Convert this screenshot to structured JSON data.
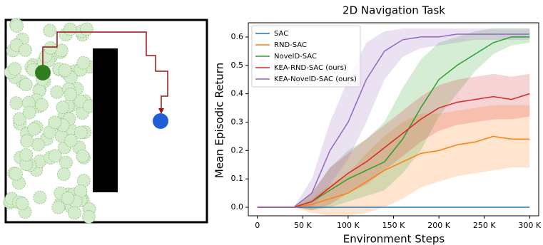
{
  "chart_data": {
    "type": "line",
    "title": "2D Navigation Task",
    "xlabel": "Environment Steps",
    "ylabel": "Mean Episodic Return",
    "x": [
      0,
      20000,
      40000,
      60000,
      80000,
      100000,
      120000,
      140000,
      160000,
      180000,
      200000,
      220000,
      240000,
      260000,
      280000,
      300000
    ],
    "xlim": [
      -10000,
      310000
    ],
    "xticks": [
      0,
      {
        "value": 50000,
        "label": "50 K"
      },
      {
        "value": 100000,
        "label": "100 K"
      },
      {
        "value": 150000,
        "label": "150 K"
      },
      {
        "value": 200000,
        "label": "200 K"
      },
      {
        "value": 250000,
        "label": "250 K"
      },
      {
        "value": 300000,
        "label": "300 K"
      }
    ],
    "ylim": [
      -0.03,
      0.65
    ],
    "yticks": [
      {
        "value": 0,
        "label": "0.0"
      },
      0.1,
      0.2,
      0.3,
      0.4,
      0.5,
      0.6
    ],
    "legend": "upper left",
    "series": [
      {
        "name": "SAC",
        "color": "#1f77b4",
        "values": [
          0,
          0,
          0,
          0,
          0,
          0,
          0,
          0,
          0,
          0,
          0,
          0,
          0,
          0,
          0,
          0
        ]
      },
      {
        "name": "RND-SAC",
        "color": "#ff7f0e",
        "values": [
          0,
          0,
          0,
          0.01,
          0.03,
          0.05,
          0.09,
          0.13,
          0.16,
          0.19,
          0.2,
          0.22,
          0.23,
          0.25,
          0.24,
          0.24
        ],
        "lower": [
          0,
          0,
          0,
          -0.02,
          -0.03,
          -0.03,
          -0.02,
          0.0,
          0.03,
          0.07,
          0.09,
          0.11,
          0.12,
          0.13,
          0.14,
          0.14
        ],
        "upper": [
          0,
          0,
          0,
          0.03,
          0.08,
          0.12,
          0.19,
          0.25,
          0.3,
          0.33,
          0.33,
          0.34,
          0.35,
          0.36,
          0.36,
          0.36
        ]
      },
      {
        "name": "NovelD-SAC",
        "color": "#2ca02c",
        "values": [
          0,
          0,
          0,
          0.02,
          0.06,
          0.1,
          0.13,
          0.16,
          0.24,
          0.35,
          0.45,
          0.5,
          0.54,
          0.58,
          0.6,
          0.6
        ],
        "lower": [
          0,
          0,
          0,
          -0.01,
          0.0,
          0.02,
          0.04,
          0.06,
          0.12,
          0.2,
          0.32,
          0.4,
          0.48,
          0.54,
          0.57,
          0.58
        ],
        "upper": [
          0,
          0,
          0,
          0.05,
          0.14,
          0.2,
          0.24,
          0.3,
          0.42,
          0.52,
          0.58,
          0.6,
          0.62,
          0.63,
          0.63,
          0.63
        ]
      },
      {
        "name": "KEA-RND-SAC (ours)",
        "color": "#d62728",
        "values": [
          0,
          0,
          0,
          0.02,
          0.07,
          0.12,
          0.16,
          0.21,
          0.26,
          0.31,
          0.35,
          0.37,
          0.38,
          0.39,
          0.38,
          0.4
        ],
        "lower": [
          0,
          0,
          0,
          -0.01,
          0.01,
          0.05,
          0.08,
          0.13,
          0.18,
          0.23,
          0.27,
          0.29,
          0.3,
          0.31,
          0.31,
          0.32
        ],
        "upper": [
          0,
          0,
          0,
          0.05,
          0.14,
          0.19,
          0.24,
          0.29,
          0.34,
          0.39,
          0.43,
          0.45,
          0.46,
          0.47,
          0.46,
          0.47
        ]
      },
      {
        "name": "KEA-NovelD-SAC (ours)",
        "color": "#9467bd",
        "values": [
          0,
          0,
          0,
          0.05,
          0.2,
          0.3,
          0.45,
          0.55,
          0.59,
          0.6,
          0.6,
          0.61,
          0.61,
          0.61,
          0.61,
          0.61
        ],
        "lower": [
          0,
          0,
          0,
          0.0,
          0.08,
          0.17,
          0.3,
          0.45,
          0.53,
          0.56,
          0.57,
          0.58,
          0.59,
          0.59,
          0.59,
          0.59
        ],
        "upper": [
          0,
          0,
          0,
          0.1,
          0.3,
          0.45,
          0.58,
          0.62,
          0.63,
          0.63,
          0.63,
          0.63,
          0.63,
          0.63,
          0.63,
          0.63
        ]
      }
    ]
  }
}
